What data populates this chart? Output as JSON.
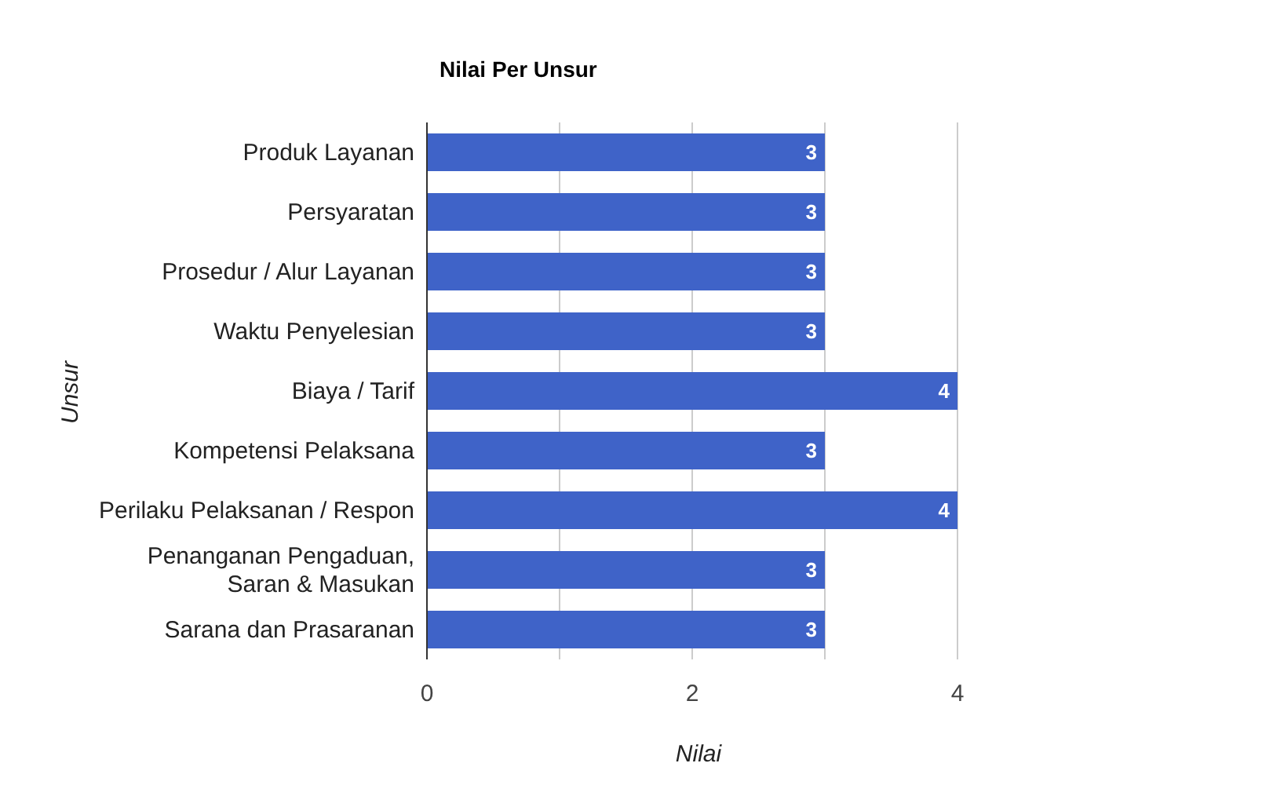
{
  "chart_data": {
    "type": "bar",
    "orientation": "horizontal",
    "title": "Nilai Per Unsur",
    "xlabel": "Nilai",
    "ylabel": "Unsur",
    "categories": [
      "Produk Layanan",
      "Persyaratan",
      "Prosedur / Alur Layanan",
      "Waktu Penyelesian",
      "Biaya / Tarif",
      "Kompetensi Pelaksana",
      "Perilaku Pelaksanan / Respon",
      "Penanganan Pengaduan,\nSaran & Masukan",
      "Sarana dan Prasaranan"
    ],
    "values": [
      3,
      3,
      3,
      3,
      4,
      3,
      4,
      3,
      3
    ],
    "color": "#3f63c8",
    "xlim": [
      0,
      4
    ],
    "xticks": [
      0,
      {
        "value": 1,
        "label": null
      },
      2,
      {
        "value": 3,
        "label": null
      },
      4
    ],
    "grid": "x",
    "data_labels": true,
    "legend": false
  }
}
